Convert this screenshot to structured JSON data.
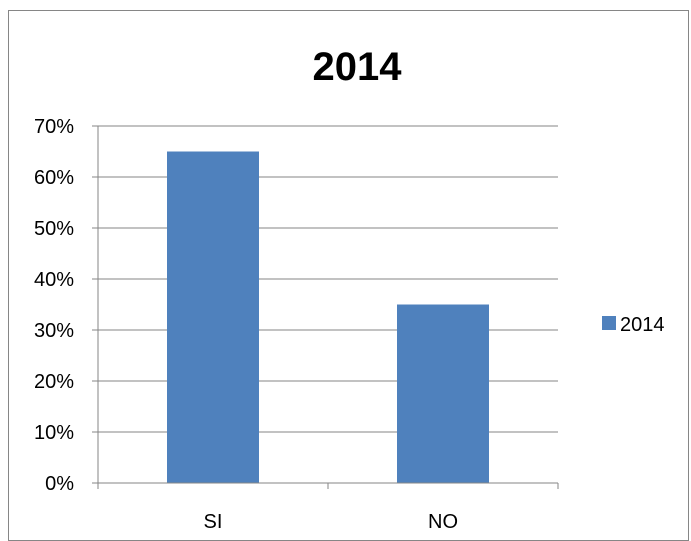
{
  "chart_data": {
    "type": "bar",
    "title": "2014",
    "categories": [
      "SI",
      "NO"
    ],
    "series": [
      {
        "name": "2014",
        "values": [
          0.65,
          0.35
        ],
        "color": "#4F81BD"
      }
    ],
    "ylim": [
      0,
      0.7
    ],
    "yticks": [
      0,
      0.1,
      0.2,
      0.3,
      0.4,
      0.5,
      0.6,
      0.7
    ],
    "ytick_labels": [
      "0%",
      "10%",
      "20%",
      "30%",
      "40%",
      "50%",
      "60%",
      "70%"
    ],
    "xlabel": "",
    "ylabel": "",
    "grid": true,
    "legend_position": "right"
  }
}
